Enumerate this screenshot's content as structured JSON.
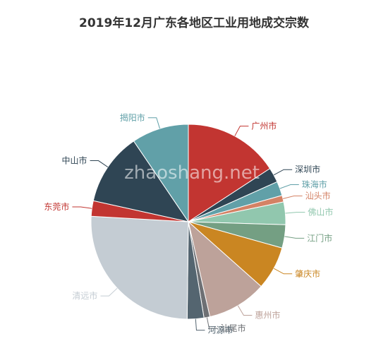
{
  "chart_data": {
    "type": "pie",
    "title": "2019年12月广东各地区工业用地成交宗数",
    "slices": [
      {
        "name": "广州市",
        "value": 16.0,
        "color": "#c23531"
      },
      {
        "name": "深圳市",
        "value": 2.5,
        "color": "#2f4554"
      },
      {
        "name": "珠海市",
        "value": 2.4,
        "color": "#61a0a8"
      },
      {
        "name": "汕头市",
        "value": 1.1,
        "color": "#d48265"
      },
      {
        "name": "佛山市",
        "value": 3.8,
        "color": "#91c7ae"
      },
      {
        "name": "江门市",
        "value": 3.9,
        "color": "#749f83"
      },
      {
        "name": "肇庆市",
        "value": 7.3,
        "color": "#ca8622"
      },
      {
        "name": "惠州市",
        "value": 10.0,
        "color": "#bda29a"
      },
      {
        "name": "汕尾市",
        "value": 1.0,
        "color": "#6e7074"
      },
      {
        "name": "河源市",
        "value": 2.8,
        "color": "#546570"
      },
      {
        "name": "清远市",
        "value": 26.0,
        "color": "#c4ccd3"
      },
      {
        "name": "东莞市",
        "value": 2.6,
        "color": "#c23531"
      },
      {
        "name": "中山市",
        "value": 12.2,
        "color": "#2f4554"
      },
      {
        "name": "揭阳市",
        "value": 9.6,
        "color": "#61a0a8"
      }
    ]
  },
  "watermark": "zhaoshang.net"
}
